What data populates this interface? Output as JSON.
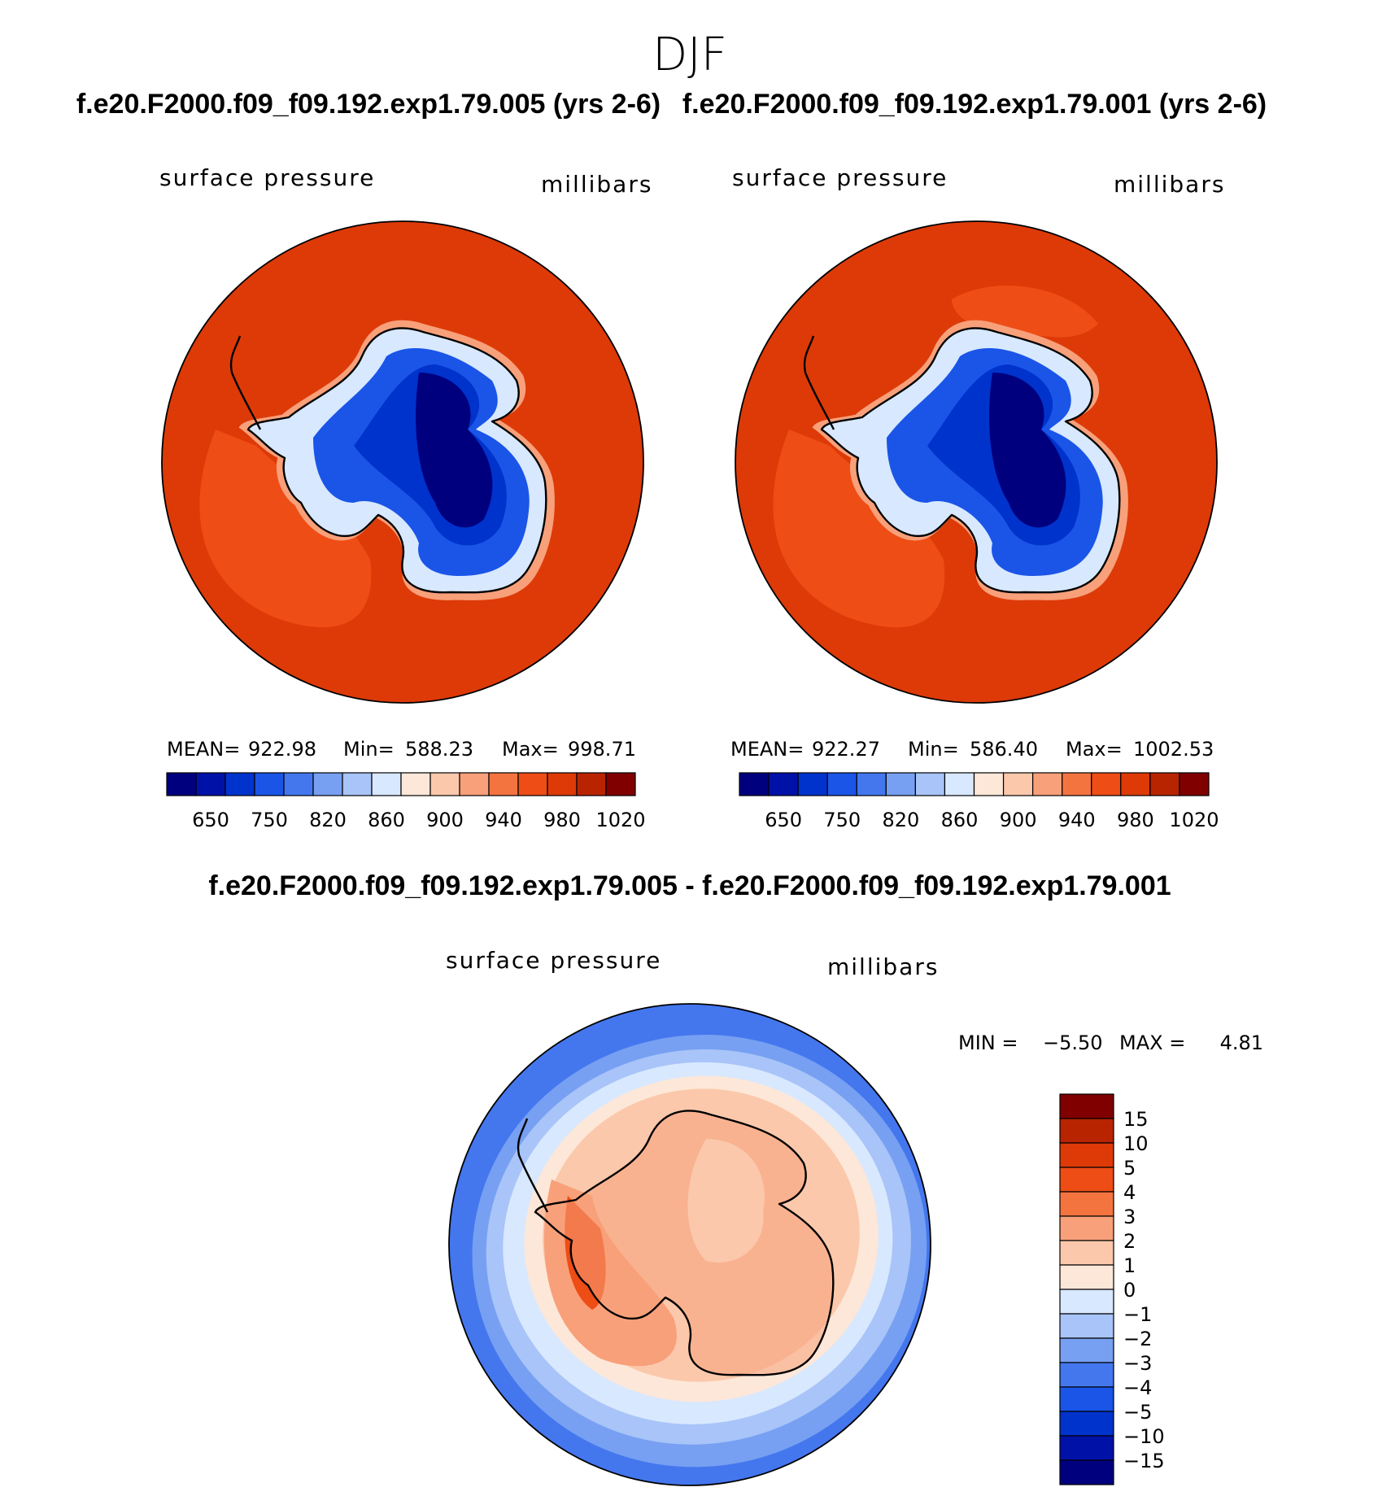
{
  "title": "DJF",
  "panels": [
    {
      "case_title": "f.e20.F2000.f09_f09.192.exp1.79.005 (yrs 2-6)",
      "variable": "surface pressure",
      "units": "millibars",
      "stats": {
        "mean_label": "MEAN=",
        "mean": "922.98",
        "min_label": "Min=",
        "min": "588.23",
        "max_label": "Max=",
        "max": "998.71"
      }
    },
    {
      "case_title": "f.e20.F2000.f09_f09.192.exp1.79.001 (yrs 2-6)",
      "variable": "surface pressure",
      "units": "millibars",
      "stats": {
        "mean_label": "MEAN=",
        "mean": "922.27",
        "min_label": "Min=",
        "min": "586.40",
        "max_label": "Max=",
        "max": "1002.53"
      }
    }
  ],
  "diff_panel": {
    "title": "f.e20.F2000.f09_f09.192.exp1.79.005 - f.e20.F2000.f09_f09.192.exp1.79.001",
    "variable": "surface pressure",
    "units": "millibars",
    "min_label": "MIN =",
    "min": "−5.50",
    "max_label": "MAX =",
    "max": "4.81"
  },
  "abs_colorbar": {
    "colors": [
      "#00007f",
      "#0011a8",
      "#0033cc",
      "#1a55e8",
      "#4477ee",
      "#77a0f2",
      "#a8c4f8",
      "#d8e8ff",
      "#fde7d8",
      "#fbc8ac",
      "#f8a07a",
      "#f47440",
      "#ee4d16",
      "#dd3a08",
      "#b82400",
      "#800000"
    ],
    "tick_labels": [
      "650",
      "750",
      "820",
      "860",
      "900",
      "940",
      "980",
      "1020"
    ]
  },
  "diff_colorbar": {
    "colors": [
      "#00007f",
      "#0011a8",
      "#0033cc",
      "#1a55e8",
      "#4477ee",
      "#77a0f2",
      "#a8c4f8",
      "#d8e8ff",
      "#fde7d8",
      "#fbc8ac",
      "#f8a07a",
      "#f47440",
      "#ee4d16",
      "#dd3a08",
      "#b82400",
      "#800000"
    ],
    "tick_labels": [
      "15",
      "10",
      "5",
      "4",
      "3",
      "2",
      "1",
      "0",
      "−1",
      "−2",
      "−3",
      "−4",
      "−5",
      "−10",
      "−15"
    ]
  },
  "map_colors": {
    "ocean_main": "#dd3a08",
    "ocean_inner": "#ee4d16",
    "ocean_dark": "#b82400",
    "diff_far": "#4477ee",
    "diff_mid": "#a8c4f8",
    "diff_light": "#d8e8ff",
    "diff_zero": "#fde7d8",
    "diff_warm": "#f8a07a",
    "diff_hot": "#ee4d16"
  }
}
